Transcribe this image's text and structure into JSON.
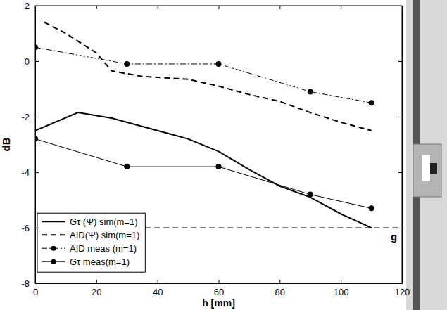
{
  "chart_data": {
    "type": "line",
    "x_label": "h [mm]",
    "y_label": "dB",
    "xlim": [
      0,
      120
    ],
    "xticks": [
      0,
      20,
      40,
      60,
      80,
      100,
      120
    ],
    "ylim": [
      -8,
      2
    ],
    "yticks": [
      -8,
      -6,
      -4,
      -2,
      0,
      2
    ],
    "grid": false,
    "legend": "lower left",
    "series": [
      {
        "name": "Gτ (Ψ) sim(m=1)",
        "color": "#000000",
        "line_style": "solid",
        "marker": "none",
        "x": [
          0,
          14,
          25,
          40,
          50,
          60,
          70,
          80,
          90,
          100,
          110
        ],
        "values": [
          -2.5,
          -1.85,
          -2.05,
          -2.5,
          -2.8,
          -3.25,
          -3.9,
          -4.5,
          -4.9,
          -5.5,
          -6.0
        ]
      },
      {
        "name": "AID(Ψ) sim(m=1)",
        "color": "#000000",
        "line_style": "dashed",
        "marker": "none",
        "x": [
          3,
          10,
          20,
          25,
          35,
          50,
          60,
          70,
          80,
          90,
          100,
          110
        ],
        "values": [
          1.4,
          1.0,
          0.3,
          -0.35,
          -0.55,
          -0.65,
          -0.9,
          -1.2,
          -1.45,
          -1.85,
          -2.2,
          -2.5
        ]
      },
      {
        "name": "AID meas (m=1)",
        "color": "#000000",
        "line_style": "dashdot",
        "marker": "circle",
        "x": [
          0,
          30,
          60,
          90,
          110
        ],
        "values": [
          0.5,
          -0.1,
          -0.1,
          -1.1,
          -1.5
        ]
      },
      {
        "name": "Gτ meas(m=1)",
        "color": "#000000",
        "line_style": "solid",
        "marker": "circle",
        "x": [
          0,
          30,
          60,
          90,
          110
        ],
        "values": [
          -2.8,
          -3.8,
          -3.8,
          -4.8,
          -5.3
        ]
      }
    ],
    "reference_line": {
      "y": -6,
      "label": "g",
      "line_style": "dashed",
      "color": "#000000"
    }
  }
}
